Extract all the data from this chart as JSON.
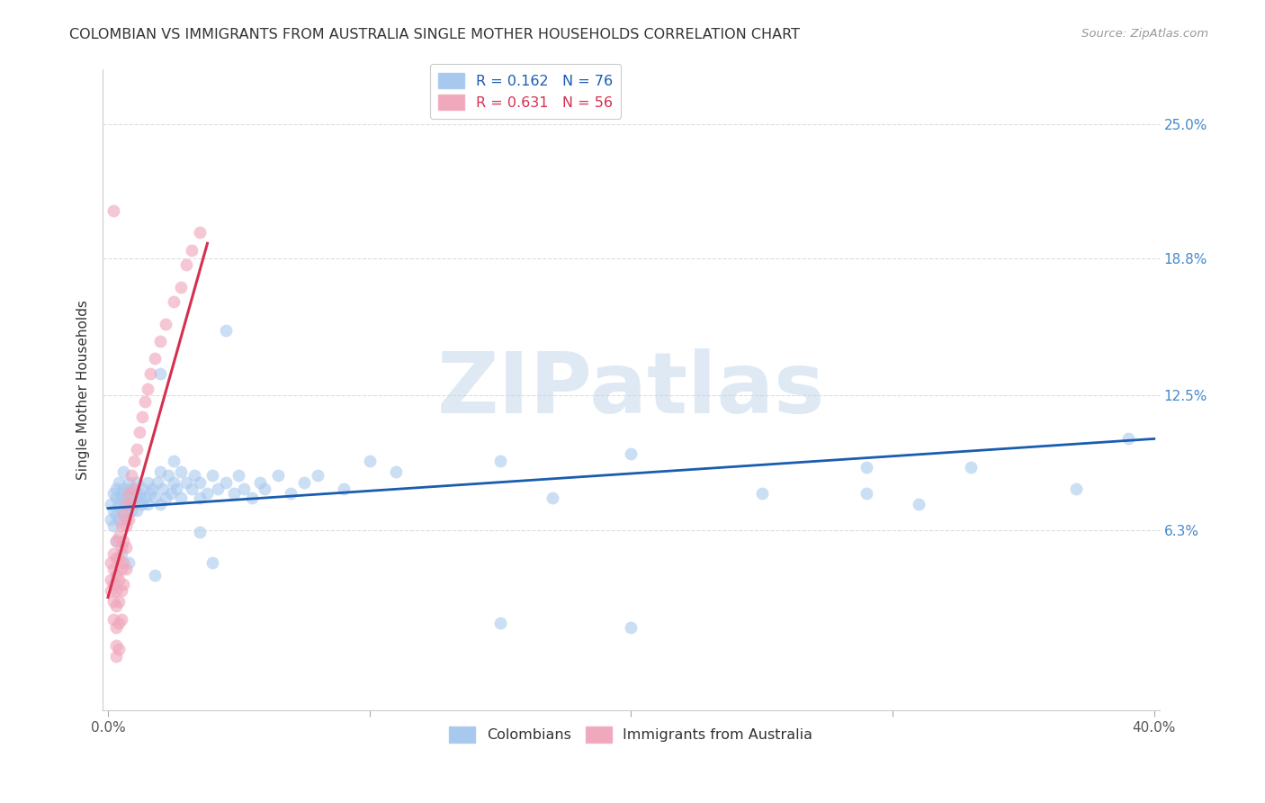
{
  "title": "COLOMBIAN VS IMMIGRANTS FROM AUSTRALIA SINGLE MOTHER HOUSEHOLDS CORRELATION CHART",
  "source": "Source: ZipAtlas.com",
  "ylabel": "Single Mother Households",
  "ytick_labels": [
    "6.3%",
    "12.5%",
    "18.8%",
    "25.0%"
  ],
  "ytick_values": [
    0.063,
    0.125,
    0.188,
    0.25
  ],
  "xlim": [
    -0.002,
    0.402
  ],
  "ylim": [
    -0.02,
    0.275
  ],
  "watermark_text": "ZIPatlas",
  "blue_scatter_color": "#a8c8ee",
  "pink_scatter_color": "#f0a8bc",
  "blue_line_color": "#1a5cb0",
  "pink_line_color": "#d43050",
  "title_color": "#333333",
  "source_color": "#999999",
  "ytick_color": "#4488cc",
  "xtick_color": "#555555",
  "grid_color": "#dddddd",
  "background_color": "#ffffff",
  "blue_line_x0": 0.0,
  "blue_line_y0": 0.073,
  "blue_line_x1": 0.4,
  "blue_line_y1": 0.105,
  "pink_line_x0": 0.0,
  "pink_line_y0": 0.032,
  "pink_line_x1": 0.038,
  "pink_line_y1": 0.195,
  "colombians_xy": [
    [
      0.001,
      0.075
    ],
    [
      0.001,
      0.068
    ],
    [
      0.002,
      0.08
    ],
    [
      0.002,
      0.072
    ],
    [
      0.002,
      0.065
    ],
    [
      0.003,
      0.078
    ],
    [
      0.003,
      0.082
    ],
    [
      0.003,
      0.07
    ],
    [
      0.004,
      0.075
    ],
    [
      0.004,
      0.068
    ],
    [
      0.004,
      0.085
    ],
    [
      0.005,
      0.08
    ],
    [
      0.005,
      0.072
    ],
    [
      0.005,
      0.078
    ],
    [
      0.006,
      0.082
    ],
    [
      0.006,
      0.075
    ],
    [
      0.006,
      0.09
    ],
    [
      0.007,
      0.078
    ],
    [
      0.007,
      0.072
    ],
    [
      0.007,
      0.068
    ],
    [
      0.008,
      0.082
    ],
    [
      0.008,
      0.075
    ],
    [
      0.008,
      0.085
    ],
    [
      0.009,
      0.08
    ],
    [
      0.009,
      0.072
    ],
    [
      0.01,
      0.078
    ],
    [
      0.01,
      0.082
    ],
    [
      0.01,
      0.075
    ],
    [
      0.011,
      0.085
    ],
    [
      0.011,
      0.072
    ],
    [
      0.012,
      0.078
    ],
    [
      0.012,
      0.08
    ],
    [
      0.013,
      0.075
    ],
    [
      0.013,
      0.082
    ],
    [
      0.014,
      0.078
    ],
    [
      0.015,
      0.085
    ],
    [
      0.015,
      0.075
    ],
    [
      0.016,
      0.08
    ],
    [
      0.017,
      0.082
    ],
    [
      0.018,
      0.078
    ],
    [
      0.019,
      0.085
    ],
    [
      0.02,
      0.09
    ],
    [
      0.02,
      0.075
    ],
    [
      0.021,
      0.082
    ],
    [
      0.022,
      0.078
    ],
    [
      0.023,
      0.088
    ],
    [
      0.024,
      0.08
    ],
    [
      0.025,
      0.085
    ],
    [
      0.025,
      0.095
    ],
    [
      0.026,
      0.082
    ],
    [
      0.028,
      0.09
    ],
    [
      0.028,
      0.078
    ],
    [
      0.03,
      0.085
    ],
    [
      0.032,
      0.082
    ],
    [
      0.033,
      0.088
    ],
    [
      0.035,
      0.078
    ],
    [
      0.035,
      0.085
    ],
    [
      0.038,
      0.08
    ],
    [
      0.04,
      0.088
    ],
    [
      0.042,
      0.082
    ],
    [
      0.045,
      0.085
    ],
    [
      0.048,
      0.08
    ],
    [
      0.05,
      0.088
    ],
    [
      0.052,
      0.082
    ],
    [
      0.055,
      0.078
    ],
    [
      0.058,
      0.085
    ],
    [
      0.06,
      0.082
    ],
    [
      0.065,
      0.088
    ],
    [
      0.07,
      0.08
    ],
    [
      0.075,
      0.085
    ],
    [
      0.08,
      0.088
    ],
    [
      0.09,
      0.082
    ],
    [
      0.02,
      0.135
    ],
    [
      0.045,
      0.155
    ],
    [
      0.1,
      0.095
    ],
    [
      0.003,
      0.058
    ],
    [
      0.005,
      0.052
    ],
    [
      0.008,
      0.048
    ],
    [
      0.018,
      0.042
    ],
    [
      0.11,
      0.09
    ],
    [
      0.15,
      0.095
    ],
    [
      0.2,
      0.098
    ],
    [
      0.29,
      0.092
    ],
    [
      0.33,
      0.092
    ],
    [
      0.17,
      0.078
    ],
    [
      0.25,
      0.08
    ],
    [
      0.29,
      0.08
    ],
    [
      0.31,
      0.075
    ],
    [
      0.37,
      0.082
    ],
    [
      0.39,
      0.105
    ],
    [
      0.035,
      0.062
    ],
    [
      0.04,
      0.048
    ],
    [
      0.15,
      0.02
    ],
    [
      0.2,
      0.018
    ]
  ],
  "australia_xy": [
    [
      0.001,
      0.048
    ],
    [
      0.001,
      0.04
    ],
    [
      0.001,
      0.035
    ],
    [
      0.002,
      0.052
    ],
    [
      0.002,
      0.045
    ],
    [
      0.002,
      0.038
    ],
    [
      0.002,
      0.03
    ],
    [
      0.002,
      0.022
    ],
    [
      0.003,
      0.058
    ],
    [
      0.003,
      0.05
    ],
    [
      0.003,
      0.042
    ],
    [
      0.003,
      0.035
    ],
    [
      0.003,
      0.028
    ],
    [
      0.003,
      0.018
    ],
    [
      0.003,
      0.01
    ],
    [
      0.003,
      0.005
    ],
    [
      0.004,
      0.06
    ],
    [
      0.004,
      0.05
    ],
    [
      0.004,
      0.04
    ],
    [
      0.004,
      0.03
    ],
    [
      0.004,
      0.02
    ],
    [
      0.004,
      0.008
    ],
    [
      0.005,
      0.065
    ],
    [
      0.005,
      0.055
    ],
    [
      0.005,
      0.045
    ],
    [
      0.005,
      0.035
    ],
    [
      0.005,
      0.022
    ],
    [
      0.006,
      0.07
    ],
    [
      0.006,
      0.058
    ],
    [
      0.006,
      0.048
    ],
    [
      0.006,
      0.038
    ],
    [
      0.007,
      0.075
    ],
    [
      0.007,
      0.065
    ],
    [
      0.007,
      0.055
    ],
    [
      0.007,
      0.045
    ],
    [
      0.008,
      0.08
    ],
    [
      0.008,
      0.068
    ],
    [
      0.009,
      0.088
    ],
    [
      0.009,
      0.075
    ],
    [
      0.01,
      0.095
    ],
    [
      0.01,
      0.082
    ],
    [
      0.011,
      0.1
    ],
    [
      0.012,
      0.108
    ],
    [
      0.013,
      0.115
    ],
    [
      0.014,
      0.122
    ],
    [
      0.015,
      0.128
    ],
    [
      0.016,
      0.135
    ],
    [
      0.018,
      0.142
    ],
    [
      0.02,
      0.15
    ],
    [
      0.022,
      0.158
    ],
    [
      0.025,
      0.168
    ],
    [
      0.028,
      0.175
    ],
    [
      0.03,
      0.185
    ],
    [
      0.032,
      0.192
    ],
    [
      0.035,
      0.2
    ],
    [
      0.002,
      0.21
    ]
  ]
}
